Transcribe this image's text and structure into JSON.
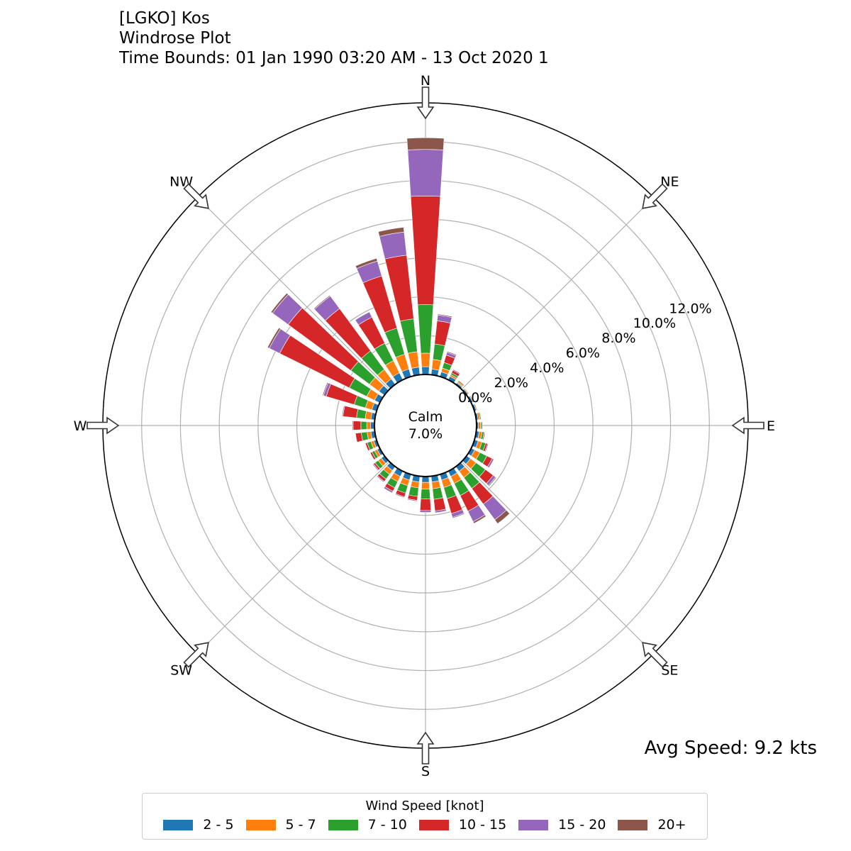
{
  "header": {
    "line1": "[LGKO] Kos",
    "line2": "Windrose Plot",
    "line3": "Time Bounds: 01 Jan 1990 03:20 AM - 13 Oct 2020 1"
  },
  "avg_speed": "Avg Speed: 9.2 kts",
  "calm": {
    "label": "Calm",
    "value": "7.0%"
  },
  "legend": {
    "title": "Wind Speed [knot]",
    "items": [
      {
        "label": "2 - 5",
        "color": "#1f77b4"
      },
      {
        "label": "5 - 7",
        "color": "#ff7f0e"
      },
      {
        "label": "7 - 10",
        "color": "#2ca02c"
      },
      {
        "label": "10 - 15",
        "color": "#d62728"
      },
      {
        "label": "15 - 20",
        "color": "#9467bd"
      },
      {
        "label": "20+",
        "color": "#8c564b"
      }
    ]
  },
  "chart_data": {
    "type": "windrose",
    "directions": [
      "N",
      "NE",
      "E",
      "SE",
      "S",
      "SW",
      "W",
      "NW"
    ],
    "radial_ticks": [
      "0.0%",
      "2.0%",
      "4.0%",
      "6.0%",
      "8.0%",
      "10.0%",
      "12.0%"
    ],
    "radial_range": [
      0,
      14
    ],
    "grid": true,
    "bin_width_deg": 10,
    "bins": [
      "2 - 5",
      "5 - 7",
      "7 - 10",
      "10 - 15",
      "15 - 20",
      "20+"
    ],
    "sectors": [
      {
        "dir_deg": 0,
        "values": [
          0.4,
          0.7,
          2.5,
          5.6,
          2.4,
          0.6
        ]
      },
      {
        "dir_deg": 10,
        "values": [
          0.3,
          0.5,
          0.8,
          1.2,
          0.3,
          0.05
        ]
      },
      {
        "dir_deg": 20,
        "values": [
          0.25,
          0.2,
          0.3,
          0.4,
          0.15,
          0.05
        ]
      },
      {
        "dir_deg": 30,
        "values": [
          0.2,
          0.1,
          0.1,
          0.15,
          0.05,
          0.0
        ]
      },
      {
        "dir_deg": 40,
        "values": [
          0.1,
          0.05,
          0.05,
          0.05,
          0.0,
          0.0
        ]
      },
      {
        "dir_deg": 50,
        "values": [
          0.1,
          0.05,
          0.0,
          0.0,
          0.0,
          0.0
        ]
      },
      {
        "dir_deg": 60,
        "values": [
          0.1,
          0.05,
          0.0,
          0.0,
          0.0,
          0.0
        ]
      },
      {
        "dir_deg": 70,
        "values": [
          0.1,
          0.05,
          0.0,
          0.0,
          0.0,
          0.0
        ]
      },
      {
        "dir_deg": 80,
        "values": [
          0.1,
          0.1,
          0.05,
          0.0,
          0.0,
          0.0
        ]
      },
      {
        "dir_deg": 90,
        "values": [
          0.1,
          0.1,
          0.05,
          0.05,
          0.0,
          0.0
        ]
      },
      {
        "dir_deg": 100,
        "values": [
          0.15,
          0.15,
          0.1,
          0.05,
          0.0,
          0.0
        ]
      },
      {
        "dir_deg": 110,
        "values": [
          0.2,
          0.2,
          0.2,
          0.1,
          0.05,
          0.0
        ]
      },
      {
        "dir_deg": 120,
        "values": [
          0.2,
          0.3,
          0.4,
          0.3,
          0.1,
          0.0
        ]
      },
      {
        "dir_deg": 130,
        "values": [
          0.25,
          0.35,
          0.6,
          0.5,
          0.15,
          0.05
        ]
      },
      {
        "dir_deg": 140,
        "values": [
          0.3,
          0.4,
          0.7,
          1.0,
          1.0,
          0.25
        ]
      },
      {
        "dir_deg": 150,
        "values": [
          0.3,
          0.4,
          0.7,
          0.9,
          0.6,
          0.1
        ]
      },
      {
        "dir_deg": 160,
        "values": [
          0.3,
          0.4,
          0.6,
          0.8,
          0.2,
          0.05
        ]
      },
      {
        "dir_deg": 170,
        "values": [
          0.3,
          0.35,
          0.55,
          0.6,
          0.1,
          0.0
        ]
      },
      {
        "dir_deg": 180,
        "values": [
          0.3,
          0.35,
          0.5,
          0.6,
          0.1,
          0.0
        ]
      },
      {
        "dir_deg": 190,
        "values": [
          0.3,
          0.3,
          0.45,
          0.2,
          0.05,
          0.0
        ]
      },
      {
        "dir_deg": 200,
        "values": [
          0.3,
          0.3,
          0.4,
          0.2,
          0.05,
          0.0
        ]
      },
      {
        "dir_deg": 210,
        "values": [
          0.3,
          0.3,
          0.35,
          0.2,
          0.1,
          0.0
        ]
      },
      {
        "dir_deg": 220,
        "values": [
          0.25,
          0.25,
          0.3,
          0.15,
          0.05,
          0.0
        ]
      },
      {
        "dir_deg": 230,
        "values": [
          0.2,
          0.2,
          0.2,
          0.1,
          0.05,
          0.0
        ]
      },
      {
        "dir_deg": 240,
        "values": [
          0.15,
          0.15,
          0.15,
          0.1,
          0.0,
          0.0
        ]
      },
      {
        "dir_deg": 250,
        "values": [
          0.15,
          0.15,
          0.2,
          0.1,
          0.0,
          0.0
        ]
      },
      {
        "dir_deg": 260,
        "values": [
          0.2,
          0.2,
          0.3,
          0.3,
          0.0,
          0.0
        ]
      },
      {
        "dir_deg": 270,
        "values": [
          0.2,
          0.2,
          0.3,
          0.4,
          0.05,
          0.0
        ]
      },
      {
        "dir_deg": 280,
        "values": [
          0.2,
          0.3,
          0.45,
          0.7,
          0.05,
          0.0
        ]
      },
      {
        "dir_deg": 290,
        "values": [
          0.25,
          0.35,
          0.6,
          1.5,
          0.15,
          0.05
        ]
      },
      {
        "dir_deg": 300,
        "values": [
          0.3,
          0.45,
          1.0,
          4.0,
          0.6,
          0.1
        ]
      },
      {
        "dir_deg": 310,
        "values": [
          0.35,
          0.6,
          1.2,
          4.0,
          1.0,
          0.1
        ]
      },
      {
        "dir_deg": 320,
        "values": [
          0.35,
          0.6,
          1.2,
          2.7,
          0.8,
          0.05
        ]
      },
      {
        "dir_deg": 330,
        "values": [
          0.4,
          0.7,
          1.0,
          1.5,
          0.3,
          0.0
        ]
      },
      {
        "dir_deg": 340,
        "values": [
          0.4,
          0.8,
          1.4,
          2.8,
          0.8,
          0.15
        ]
      },
      {
        "dir_deg": 350,
        "values": [
          0.4,
          0.8,
          1.7,
          3.3,
          1.2,
          0.25
        ]
      }
    ]
  }
}
